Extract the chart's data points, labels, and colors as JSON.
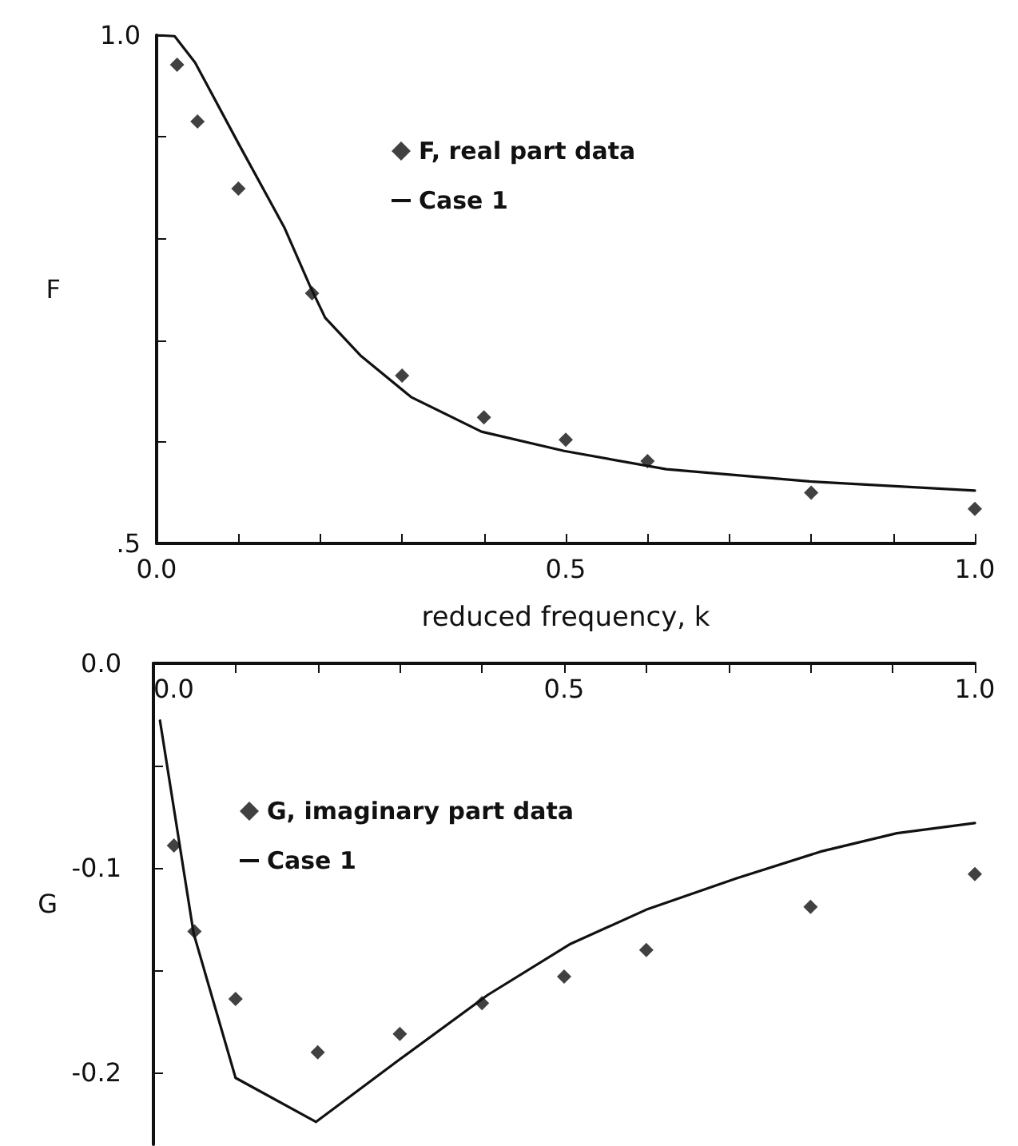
{
  "chart_data": [
    {
      "type": "scatter",
      "xlabel": "reduced frequency, k",
      "ylabel": "F",
      "legend": "top",
      "grid": false,
      "xlim": [
        0,
        1
      ],
      "xticks": [
        {
          "value": 0,
          "label": "0.0"
        },
        {
          "value": 0.1,
          "label": null
        },
        {
          "value": 0.2,
          "label": null
        },
        {
          "value": 0.3,
          "label": null
        },
        {
          "value": 0.4,
          "label": null
        },
        {
          "value": 0.5,
          "label": "0.5"
        },
        {
          "value": 0.6,
          "label": null
        },
        {
          "value": 0.7,
          "label": null
        },
        {
          "value": 0.8,
          "label": null
        },
        {
          "value": 0.9,
          "label": null
        },
        {
          "value": 1,
          "label": "1.0"
        }
      ],
      "ylim": [
        0.5,
        1
      ],
      "yticks": [
        {
          "value": 0.5,
          "label": ".5"
        },
        {
          "value": 0.6,
          "label": null
        },
        {
          "value": 0.7,
          "label": null
        },
        {
          "value": 0.8,
          "label": null
        },
        {
          "value": 0.9,
          "label": null
        },
        {
          "value": 1,
          "label": "1.0"
        }
      ],
      "series": [
        {
          "name": "F, real part data",
          "type": "scatter",
          "marker": "diamond",
          "color": "#111111",
          "x": [
            0.025,
            0.05,
            0.1,
            0.19,
            0.3,
            0.4,
            0.5,
            0.6,
            0.8,
            1.0
          ],
          "values": [
            0.971,
            0.915,
            0.849,
            0.746,
            0.665,
            0.624,
            0.602,
            0.581,
            0.55,
            0.534
          ]
        },
        {
          "name": "Case 1",
          "type": "line",
          "marker": "none",
          "line_style": "solid",
          "color": "#111111",
          "x": [
            0,
            0.022,
            0.047,
            0.101,
            0.156,
            0.187,
            0.206,
            0.249,
            0.311,
            0.397,
            0.498,
            0.623,
            0.798,
            1.0
          ],
          "values": [
            1.0,
            0.999,
            0.973,
            0.892,
            0.811,
            0.754,
            0.722,
            0.685,
            0.644,
            0.61,
            0.591,
            0.573,
            0.561,
            0.552
          ]
        }
      ]
    },
    {
      "type": "scatter",
      "ylabel": "G",
      "legend": "top left",
      "grid": false,
      "xlim": [
        0,
        1
      ],
      "xticks": [
        {
          "value": 0,
          "label": "0.0"
        },
        {
          "value": 0.1,
          "label": null
        },
        {
          "value": 0.2,
          "label": null
        },
        {
          "value": 0.3,
          "label": null
        },
        {
          "value": 0.4,
          "label": null
        },
        {
          "value": 0.5,
          "label": "0.5"
        },
        {
          "value": 0.6,
          "label": null
        },
        {
          "value": 0.7,
          "label": null
        },
        {
          "value": 0.8,
          "label": null
        },
        {
          "value": 0.9,
          "label": null
        },
        {
          "value": 1,
          "label": "1.0"
        }
      ],
      "ylim": [
        -0.235,
        0
      ],
      "yticks": [
        {
          "value": 0,
          "label": "0.0"
        },
        {
          "value": -0.05,
          "label": null
        },
        {
          "value": -0.1,
          "label": "-0.1"
        },
        {
          "value": -0.15,
          "label": null
        },
        {
          "value": -0.2,
          "label": "-0.2"
        }
      ],
      "series": [
        {
          "name": "G, imaginary part data",
          "type": "scatter",
          "marker": "diamond",
          "color": "#111111",
          "x": [
            0.025,
            0.05,
            0.1,
            0.2,
            0.3,
            0.4,
            0.5,
            0.6,
            0.8,
            1.0
          ],
          "values": [
            -0.089,
            -0.131,
            -0.164,
            -0.19,
            -0.181,
            -0.166,
            -0.153,
            -0.14,
            -0.119,
            -0.103
          ]
        },
        {
          "name": "Case 1",
          "type": "line",
          "marker": "none",
          "line_style": "solid",
          "color": "#111111",
          "x": [
            0.008,
            0.049,
            0.1,
            0.198,
            0.298,
            0.407,
            0.508,
            0.602,
            0.71,
            0.812,
            0.905,
            1.0
          ],
          "values": [
            -0.028,
            -0.132,
            -0.2025,
            -0.224,
            -0.194,
            -0.162,
            -0.137,
            -0.12,
            -0.105,
            -0.092,
            -0.083,
            -0.078
          ]
        }
      ]
    }
  ]
}
